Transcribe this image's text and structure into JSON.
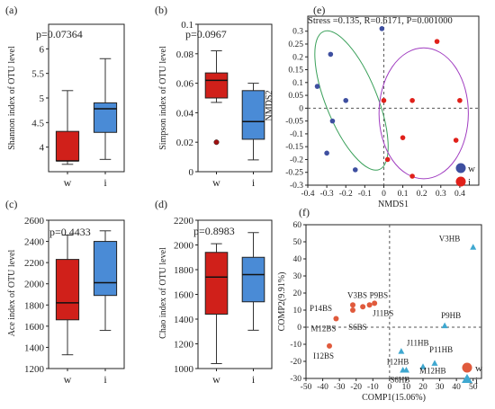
{
  "colors": {
    "w": "#d0201a",
    "i": "#4a8bd6",
    "w_point": "#e0201a",
    "i_point": "#3e4fa0",
    "ellipse_w": "#3aa05a",
    "ellipse_i": "#a03cc0",
    "pca_w": "#e05a3c",
    "pca_i": "#3fa8d0"
  },
  "panels": [
    {
      "tag": "(a)",
      "ylabel": "Shannon index of OTU level",
      "pvalue": "p=0.07364"
    },
    {
      "tag": "(b)",
      "ylabel": "Simpson index of OTU level",
      "pvalue": "p=0.0967"
    },
    {
      "tag": "(c)",
      "ylabel": "Ace index of OTU level",
      "pvalue": "p=0.4433"
    },
    {
      "tag": "(d)",
      "ylabel": "Chao index of OTU level",
      "pvalue": "p=0.8983"
    },
    {
      "tag": "(e)",
      "stress": "Stress =0.135, R=0.6171, P=0.001000"
    },
    {
      "tag": "(f)"
    }
  ],
  "chart_data": [
    {
      "type": "box",
      "categories": [
        "w",
        "i"
      ],
      "yticks": [
        "4",
        "4.5",
        "5",
        "5.5",
        "6"
      ],
      "ylim": [
        3.5,
        6.5
      ],
      "boxes": [
        {
          "name": "w",
          "min": 3.65,
          "q1": 3.72,
          "median": 3.72,
          "q3": 4.32,
          "max": 5.15,
          "outliers": []
        },
        {
          "name": "i",
          "min": 3.75,
          "q1": 4.3,
          "median": 4.78,
          "q3": 4.9,
          "max": 5.8,
          "outliers": []
        }
      ]
    },
    {
      "type": "box",
      "categories": [
        "w",
        "i"
      ],
      "yticks": [
        "0",
        "0.02",
        "0.04",
        "0.06",
        "0.08",
        "0.1"
      ],
      "ylim": [
        0,
        0.1
      ],
      "boxes": [
        {
          "name": "w",
          "min": 0.047,
          "q1": 0.05,
          "median": 0.062,
          "q3": 0.067,
          "max": 0.082,
          "outliers": [
            0.02
          ]
        },
        {
          "name": "i",
          "min": 0.008,
          "q1": 0.022,
          "median": 0.034,
          "q3": 0.055,
          "max": 0.06,
          "outliers": []
        }
      ]
    },
    {
      "type": "box",
      "categories": [
        "w",
        "i"
      ],
      "yticks": [
        "1200",
        "1400",
        "1600",
        "1800",
        "2000",
        "2200",
        "2400",
        "2600"
      ],
      "ylim": [
        1200,
        2600
      ],
      "boxes": [
        {
          "name": "w",
          "min": 1330,
          "q1": 1660,
          "median": 1820,
          "q3": 2230,
          "max": 2460,
          "outliers": []
        },
        {
          "name": "i",
          "min": 1560,
          "q1": 1890,
          "median": 2010,
          "q3": 2400,
          "max": 2500,
          "outliers": []
        }
      ]
    },
    {
      "type": "box",
      "categories": [
        "w",
        "i"
      ],
      "yticks": [
        "1000",
        "1200",
        "1400",
        "1600",
        "1800",
        "2000",
        "2200"
      ],
      "ylim": [
        1000,
        2200
      ],
      "boxes": [
        {
          "name": "w",
          "min": 1040,
          "q1": 1440,
          "median": 1740,
          "q3": 1940,
          "max": 2010,
          "outliers": []
        },
        {
          "name": "i",
          "min": 1310,
          "q1": 1540,
          "median": 1760,
          "q3": 1900,
          "max": 2100,
          "outliers": []
        }
      ]
    },
    {
      "type": "scatter",
      "xlabel": "NMDS1",
      "ylabel": "NMDS2",
      "xlim": [
        -0.4,
        0.5
      ],
      "ylim": [
        -0.3,
        0.32
      ],
      "xticks": [
        -0.4,
        -0.3,
        -0.2,
        -0.1,
        0,
        0.1,
        0.2,
        0.3,
        0.4
      ],
      "yticks": [
        0.3,
        0.25,
        0.2,
        0.15,
        0.1,
        0.05,
        0,
        -0.05,
        -0.1,
        -0.15,
        -0.2,
        -0.25,
        -0.3
      ],
      "legend": [
        "w",
        "i"
      ],
      "series": [
        {
          "name": "w",
          "points": [
            [
              -0.01,
              0.31
            ],
            [
              -0.28,
              0.21
            ],
            [
              -0.35,
              0.085
            ],
            [
              -0.2,
              0.03
            ],
            [
              -0.27,
              -0.05
            ],
            [
              -0.3,
              -0.175
            ],
            [
              -0.15,
              -0.24
            ]
          ]
        },
        {
          "name": "i",
          "points": [
            [
              0.28,
              0.26
            ],
            [
              0.0,
              0.03
            ],
            [
              0.15,
              0.03
            ],
            [
              0.4,
              0.03
            ],
            [
              0.1,
              -0.115
            ],
            [
              0.38,
              -0.125
            ],
            [
              0.02,
              -0.2
            ],
            [
              0.15,
              -0.265
            ]
          ]
        }
      ],
      "ellipses": [
        {
          "name": "w",
          "center": [
            -0.17,
            0.03
          ],
          "rx": 0.135,
          "ry": 0.29,
          "angle": -22
        },
        {
          "name": "i",
          "center": [
            0.21,
            -0.02
          ],
          "rx": 0.235,
          "ry": 0.255,
          "angle": 0
        }
      ]
    },
    {
      "type": "scatter",
      "xlabel": "COMP1(15.06%)",
      "ylabel": "COMP2(9.91%)",
      "xlim": [
        -50,
        55
      ],
      "ylim": [
        -30,
        60
      ],
      "xticks": [
        -50,
        -40,
        -30,
        -20,
        -10,
        0,
        10,
        20,
        30,
        40,
        50
      ],
      "yticks": [
        -30,
        -20,
        -10,
        0,
        10,
        20,
        30,
        40,
        50,
        60
      ],
      "legend": [
        "w",
        "i"
      ],
      "series": [
        {
          "name": "w",
          "points": [
            {
              "x": -36,
              "y": -11,
              "label": "I12BS"
            },
            {
              "x": -32,
              "y": 5,
              "label": "M12BS"
            },
            {
              "x": -22,
              "y": 13,
              "label": "V3BS"
            },
            {
              "x": -22,
              "y": 10,
              "label": "P14BS"
            },
            {
              "x": -16,
              "y": 12,
              "label": "S6BS"
            },
            {
              "x": -12,
              "y": 13,
              "label": "P9BS"
            },
            {
              "x": -9,
              "y": 14,
              "label": "J11BS"
            }
          ]
        },
        {
          "name": "i",
          "points": [
            {
              "x": 50,
              "y": 47,
              "label": "V3HB"
            },
            {
              "x": 33,
              "y": 1,
              "label": "P9HB"
            },
            {
              "x": 7,
              "y": -14,
              "label": "J11HB"
            },
            {
              "x": 8,
              "y": -25,
              "label": "I12HB"
            },
            {
              "x": 10,
              "y": -25,
              "label": "S6HB"
            },
            {
              "x": 20,
              "y": -23,
              "label": "M12HB"
            },
            {
              "x": 27,
              "y": -21,
              "label": "P11HB"
            }
          ]
        }
      ]
    }
  ]
}
